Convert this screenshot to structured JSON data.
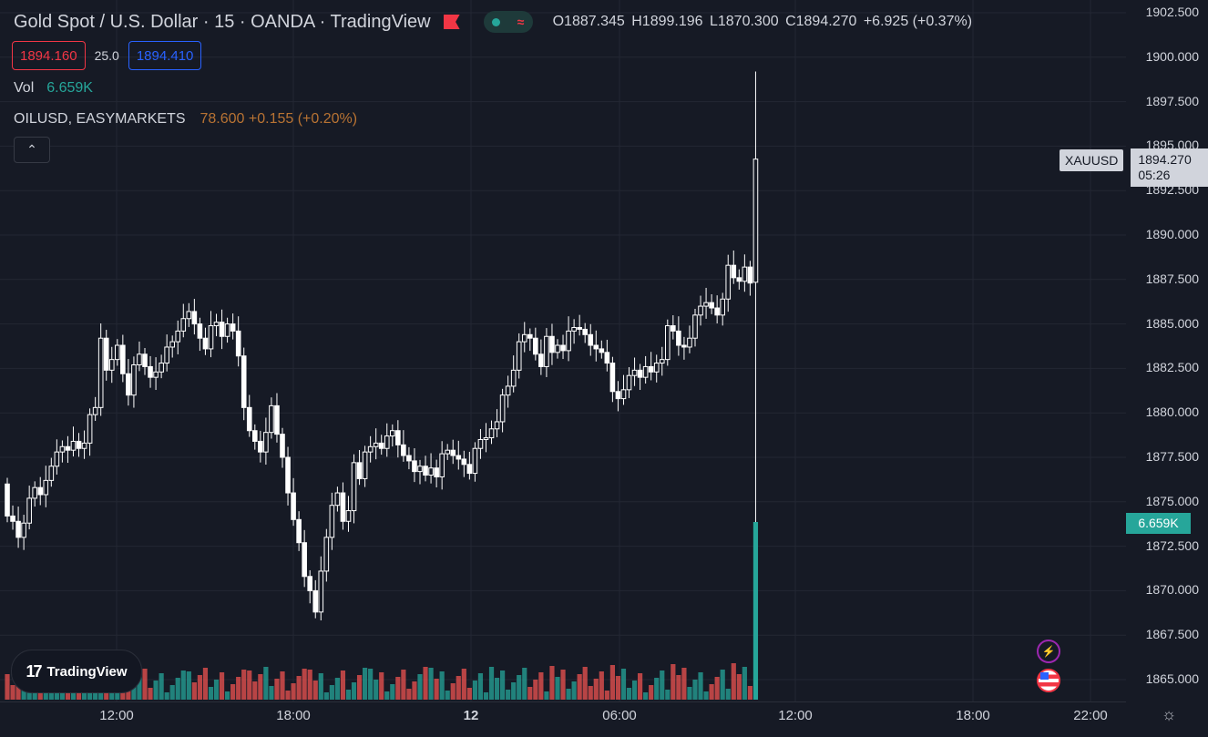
{
  "legend": {
    "title": "Gold Spot / U.S. Dollar · 15 · OANDA · TradingView",
    "open": "O1887.345",
    "high": "H1899.196",
    "low": "L1870.300",
    "close": "C1894.270",
    "change": "+6.925 (+0.37%)"
  },
  "quote": {
    "sell": "1894.160",
    "spread": "25.0",
    "buy": "1894.410"
  },
  "volume_indicator": {
    "label": "Vol",
    "value": "6.659K"
  },
  "comparison": {
    "label": "OILUSD, EASYMARKETS",
    "value": "78.600 +0.155 (+0.20%)"
  },
  "price_axis": {
    "ticks": [
      "1902.500",
      "1900.000",
      "1897.500",
      "1895.000",
      "1892.500",
      "1890.000",
      "1887.500",
      "1885.000",
      "1882.500",
      "1880.000",
      "1877.500",
      "1875.000",
      "1872.500",
      "1870.000",
      "1867.500",
      "1865.000"
    ]
  },
  "price_tag": {
    "symbol": "XAUUSD",
    "price": "1894.270",
    "countdown": "05:26"
  },
  "volume_tag": "6.659K",
  "time_axis": {
    "ticks": [
      "12:00",
      "18:00",
      "12",
      "06:00",
      "12:00",
      "18:00",
      "22:00"
    ]
  },
  "branding": {
    "logo": "TradingView"
  },
  "colors": {
    "up": "#26a69a",
    "down": "#ef5350",
    "candle_up": "#161a25",
    "candle_down": "#ffffff",
    "background": "#161a25",
    "grid": "#232733"
  },
  "chart_data": {
    "type": "candlestick",
    "ylim": [
      1864.0,
      1903.0
    ],
    "y_ticks": [
      1865,
      1867.5,
      1870,
      1872.5,
      1875,
      1877.5,
      1880,
      1882.5,
      1885,
      1887.5,
      1890,
      1892.5,
      1895,
      1897.5,
      1900,
      1902.5
    ],
    "closes": [
      1874.2,
      1873.9,
      1873.0,
      1873.8,
      1875.2,
      1875.8,
      1875.4,
      1876.2,
      1877.0,
      1877.8,
      1878.1,
      1877.9,
      1878.4,
      1878.0,
      1878.3,
      1879.9,
      1880.3,
      1884.2,
      1882.4,
      1883.0,
      1883.8,
      1882.2,
      1881.0,
      1882.7,
      1883.3,
      1882.6,
      1882.0,
      1882.3,
      1882.8,
      1883.7,
      1884.0,
      1884.6,
      1885.3,
      1885.7,
      1885.0,
      1884.2,
      1883.6,
      1884.9,
      1885.1,
      1884.3,
      1885.0,
      1884.6,
      1883.2,
      1880.3,
      1879.0,
      1878.4,
      1877.8,
      1878.9,
      1880.4,
      1878.8,
      1877.5,
      1875.5,
      1874.0,
      1872.7,
      1870.8,
      1870.0,
      1868.8,
      1871.1,
      1873.0,
      1874.8,
      1875.5,
      1873.9,
      1874.5,
      1877.2,
      1876.3,
      1877.8,
      1878.1,
      1878.3,
      1878.0,
      1878.7,
      1879.0,
      1878.2,
      1877.6,
      1877.3,
      1876.7,
      1877.0,
      1876.5,
      1876.9,
      1876.4,
      1877.7,
      1877.9,
      1877.6,
      1877.4,
      1877.1,
      1876.6,
      1878.0,
      1878.5,
      1878.6,
      1879.1,
      1879.5,
      1881.0,
      1881.5,
      1882.4,
      1884.0,
      1884.4,
      1884.2,
      1883.3,
      1882.6,
      1884.3,
      1883.4,
      1883.8,
      1883.5,
      1884.6,
      1884.8,
      1884.7,
      1884.4,
      1883.8,
      1883.6,
      1883.4,
      1882.8,
      1881.2,
      1880.8,
      1881.3,
      1882.1,
      1882.4,
      1882.0,
      1882.6,
      1882.3,
      1882.8,
      1883.0,
      1884.9,
      1884.6,
      1883.8,
      1883.7,
      1884.2,
      1885.5,
      1886.0,
      1886.2,
      1885.9,
      1885.5,
      1886.4,
      1888.3,
      1887.6,
      1887.4,
      1888.2,
      1887.3,
      1894.27
    ],
    "last_volume": "6.659K"
  }
}
